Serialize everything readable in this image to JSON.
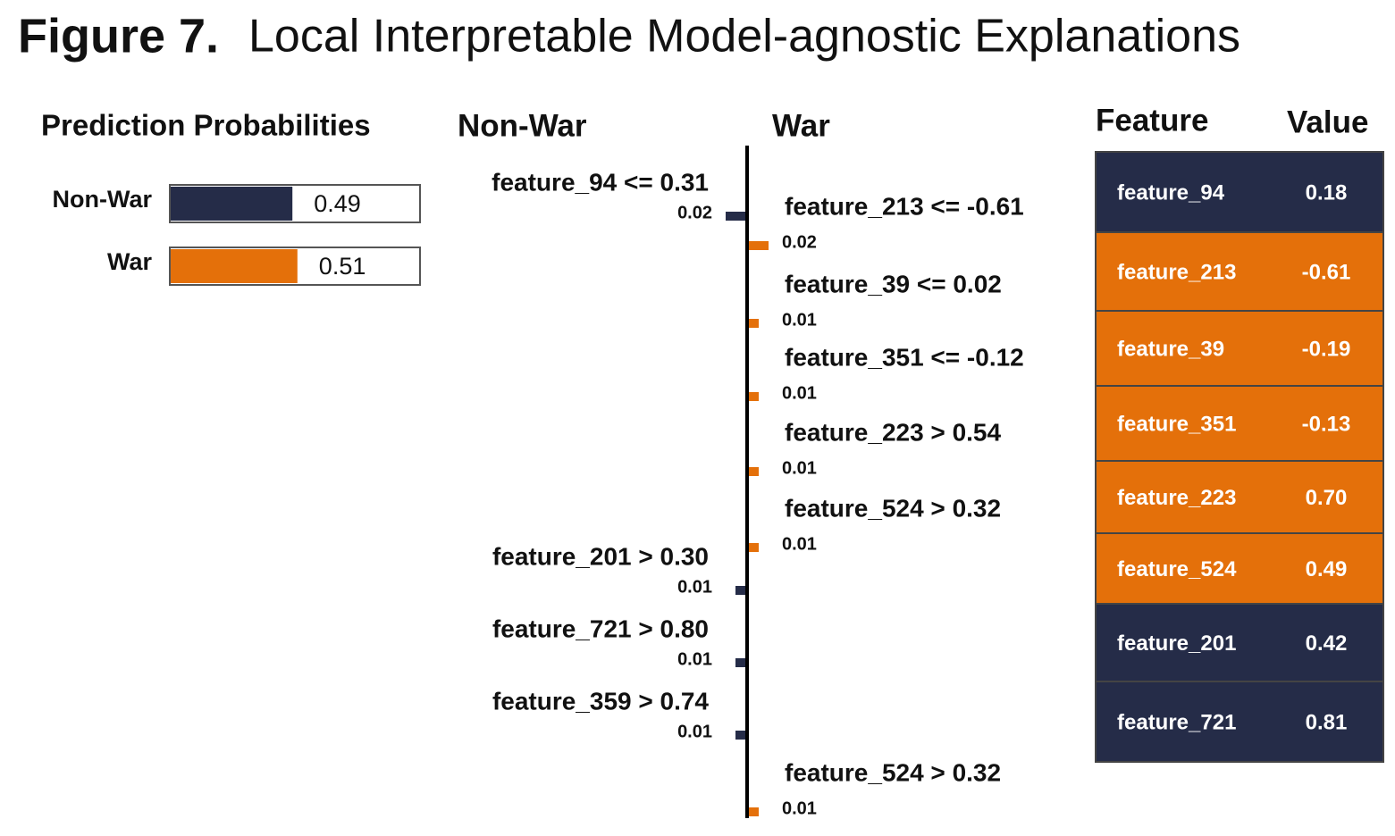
{
  "figure_label": "Figure 7.",
  "title": "Local Interpretable Model-agnostic Explanations",
  "prediction_probabilities": {
    "title": "Prediction Probabilities",
    "categories": [
      "Non-War",
      "War"
    ],
    "values": [
      0.49,
      0.51
    ],
    "colors": [
      "#252c48",
      "#e4700a"
    ],
    "xlim": [
      0,
      1
    ]
  },
  "explanation": {
    "classes": [
      "Non-War",
      "War"
    ],
    "colors": [
      "#252c48",
      "#e4700a"
    ],
    "features": [
      {
        "label": "feature_94 <= 0.31",
        "value": 0.02,
        "class": "Non-War"
      },
      {
        "label": "feature_213 <= -0.61",
        "value": 0.02,
        "class": "War"
      },
      {
        "label": "feature_39 <= 0.02",
        "value": 0.01,
        "class": "War"
      },
      {
        "label": "feature_351 <= -0.12",
        "value": 0.01,
        "class": "War"
      },
      {
        "label": "feature_223 > 0.54",
        "value": 0.01,
        "class": "War"
      },
      {
        "label": "feature_524 > 0.32",
        "value": 0.01,
        "class": "War"
      },
      {
        "label": "feature_201 > 0.30",
        "value": 0.01,
        "class": "Non-War"
      },
      {
        "label": "feature_721 > 0.80",
        "value": 0.01,
        "class": "Non-War"
      },
      {
        "label": "feature_359 > 0.74",
        "value": 0.01,
        "class": "Non-War"
      },
      {
        "label": "feature_524 > 0.32",
        "value": 0.01,
        "class": "War"
      }
    ]
  },
  "table": {
    "headers": [
      "Feature",
      "Value"
    ],
    "rows": [
      [
        "feature_94",
        "0.18"
      ],
      [
        "feature_213",
        "-0.61"
      ],
      [
        "feature_39",
        "-0.19"
      ],
      [
        "feature_351",
        "-0.13"
      ],
      [
        "feature_223",
        "0.70"
      ],
      [
        "feature_524",
        "0.49"
      ],
      [
        "feature_201",
        "0.42"
      ],
      [
        "feature_721",
        "0.81"
      ]
    ],
    "row_colors": [
      "#252c48",
      "#e4700a",
      "#e4700a",
      "#e4700a",
      "#e4700a",
      "#e4700a",
      "#252c48",
      "#252c48"
    ]
  }
}
